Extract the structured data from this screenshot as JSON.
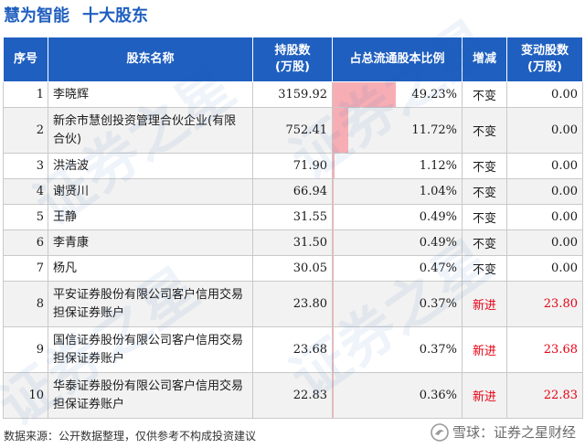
{
  "header": {
    "company": "慧为智能",
    "subtitle": "十大股东"
  },
  "table": {
    "columns": {
      "idx": "序号",
      "name": "股东名称",
      "shares_line1": "持股数",
      "shares_line2": "(万股)",
      "ratio": "占总流通股本比例",
      "change": "增减",
      "delta_line1": "变动股数",
      "delta_line2": "(万股)"
    },
    "rows": [
      {
        "idx": "1",
        "name": "李晓辉",
        "shares": "3159.92",
        "ratio": "49.23%",
        "ratio_value": 49.23,
        "change": "不变",
        "delta": "0.00"
      },
      {
        "idx": "2",
        "name": "新余市慧创投资管理合伙企业(有限合伙)",
        "shares": "752.41",
        "ratio": "11.72%",
        "ratio_value": 11.72,
        "change": "不变",
        "delta": "0.00"
      },
      {
        "idx": "3",
        "name": "洪浩波",
        "shares": "71.90",
        "ratio": "1.12%",
        "ratio_value": 1.12,
        "change": "不变",
        "delta": "0.00"
      },
      {
        "idx": "4",
        "name": "谢贤川",
        "shares": "66.94",
        "ratio": "1.04%",
        "ratio_value": 1.04,
        "change": "不变",
        "delta": "0.00"
      },
      {
        "idx": "5",
        "name": "王静",
        "shares": "31.55",
        "ratio": "0.49%",
        "ratio_value": 0.49,
        "change": "不变",
        "delta": "0.00"
      },
      {
        "idx": "6",
        "name": "李青康",
        "shares": "31.50",
        "ratio": "0.49%",
        "ratio_value": 0.49,
        "change": "不变",
        "delta": "0.00"
      },
      {
        "idx": "7",
        "name": "杨凡",
        "shares": "30.05",
        "ratio": "0.47%",
        "ratio_value": 0.47,
        "change": "不变",
        "delta": "0.00"
      },
      {
        "idx": "8",
        "name": "平安证券股份有限公司客户信用交易担保证券账户",
        "shares": "23.80",
        "ratio": "0.37%",
        "ratio_value": 0.37,
        "change": "新进",
        "delta": "23.80"
      },
      {
        "idx": "9",
        "name": "国信证券股份有限公司客户信用交易担保证券账户",
        "shares": "23.68",
        "ratio": "0.37%",
        "ratio_value": 0.37,
        "change": "新进",
        "delta": "23.68"
      },
      {
        "idx": "10",
        "name": "华泰证券股份有限公司客户信用交易担保证券账户",
        "shares": "22.83",
        "ratio": "0.36%",
        "ratio_value": 0.36,
        "change": "新进",
        "delta": "22.83"
      }
    ]
  },
  "footer": {
    "source": "数据来源：公开数据整理，仅供参考不构成投资建议",
    "brand": "雪球：证券之星财经"
  },
  "watermark": {
    "text": "证券之星"
  },
  "colors": {
    "header_bg": "#1f5fbf",
    "bar": "#f6aeb4",
    "new_entry": "#e60012"
  },
  "icons": {
    "brand_logo": "snowball-logo-icon"
  }
}
